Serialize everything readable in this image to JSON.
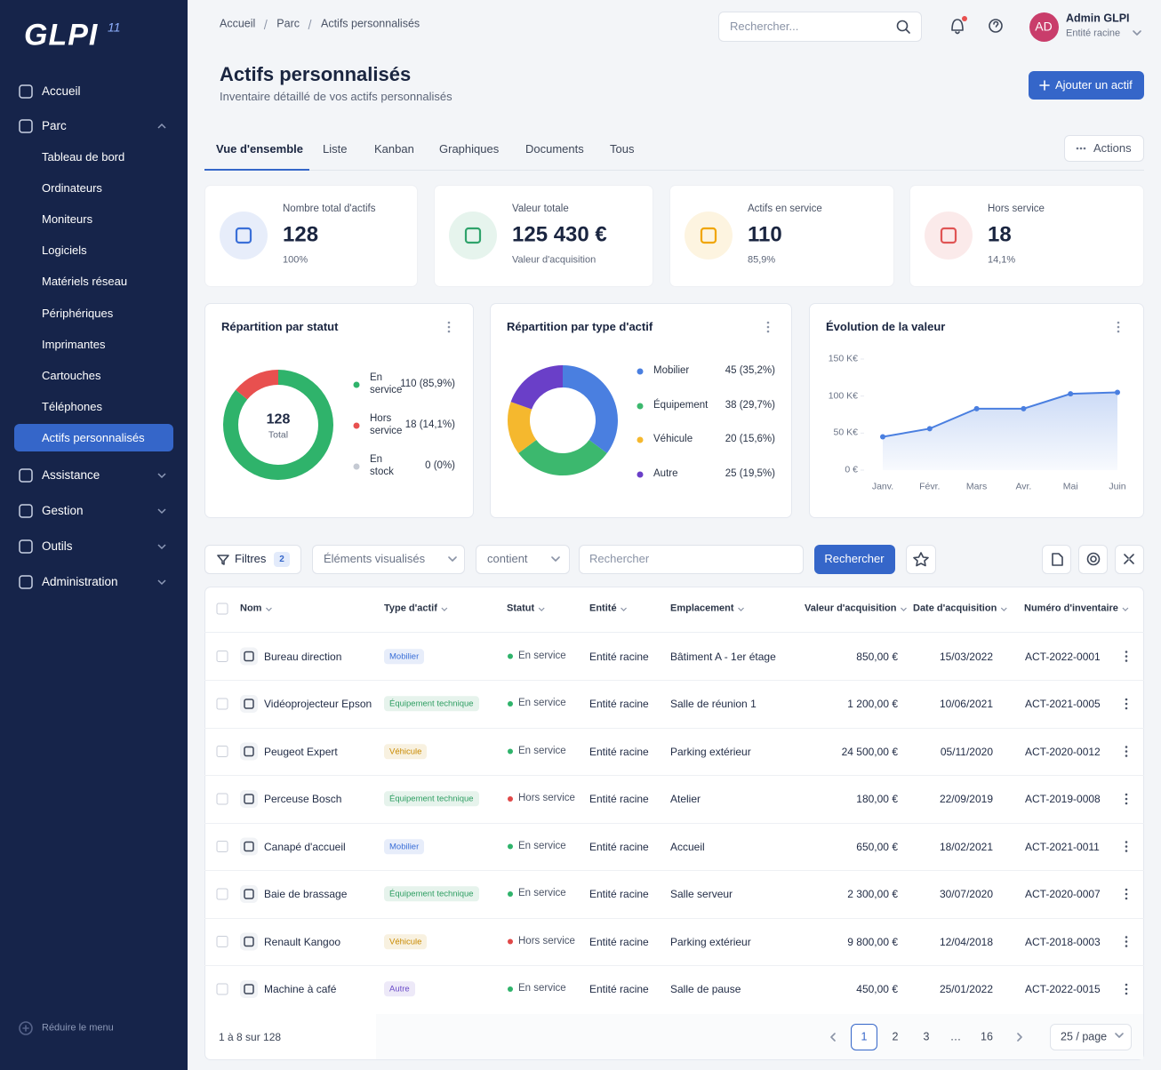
{
  "logo": {
    "text": "GLPI",
    "version": "11"
  },
  "sidebar": {
    "menu": [
      {
        "label": "Accueil"
      },
      {
        "label": "Parc",
        "children": [
          "Tableau de bord",
          "Ordinateurs",
          "Moniteurs",
          "Logiciels",
          "Matériels réseau",
          "Périphériques",
          "Imprimantes",
          "Cartouches",
          "Téléphones",
          "Actifs personnalisés"
        ]
      },
      {
        "label": "Assistance"
      },
      {
        "label": "Gestion"
      },
      {
        "label": "Outils"
      },
      {
        "label": "Administration"
      }
    ],
    "active_child": 9,
    "collapse": "Réduire le menu"
  },
  "topbar": {
    "breadcrumb": [
      "Accueil",
      "Parc",
      "Actifs personnalisés"
    ],
    "search_placeholder": "Rechercher...",
    "user_initials": "AD",
    "user_name": "Admin GLPI",
    "user_entity": "Entité racine"
  },
  "header": {
    "title": "Actifs personnalisés",
    "subtitle": "Inventaire détaillé de vos actifs personnalisés",
    "add_button": "Ajouter un actif"
  },
  "tabs": {
    "items": [
      "Vue d'ensemble",
      "Liste",
      "Kanban",
      "Graphiques",
      "Documents",
      "Tous"
    ],
    "active": 0,
    "actions": "Actions"
  },
  "stats": [
    {
      "label": "Nombre total d'actifs",
      "value": "128",
      "sub": "100%",
      "color": "#3a6fd8"
    },
    {
      "label": "Valeur totale",
      "value": "125 430 €",
      "sub": "Valeur d'acquisition",
      "color": "#2fa36b"
    },
    {
      "label": "Actifs en service",
      "value": "110",
      "sub": "85,9%",
      "color": "#f0a500"
    },
    {
      "label": "Hors service",
      "value": "18",
      "sub": "14,1%",
      "color": "#e05555"
    }
  ],
  "charts": [
    {
      "type": "donut",
      "title": "Répartition par statut",
      "center_value": "128",
      "center_label": "Total",
      "categories": [
        "En service",
        "Hors service",
        "En stock"
      ],
      "values": [
        110,
        18,
        0
      ],
      "value_labels": [
        "110 (85,9%)",
        "18 (14,1%)",
        "0 (0%)"
      ],
      "colors": [
        "#2fb36b",
        "#e8504f",
        "#c5cad3"
      ]
    },
    {
      "type": "donut",
      "title": "Répartition par type d'actif",
      "categories": [
        "Mobilier",
        "Équipement",
        "Véhicule",
        "Autre"
      ],
      "values": [
        45,
        38,
        20,
        25
      ],
      "value_labels": [
        "45 (35,2%)",
        "38 (29,7%)",
        "20 (15,6%)",
        "25 (19,5%)"
      ],
      "colors": [
        "#4a7fe0",
        "#3cb86e",
        "#f5b82e",
        "#6a3fc8"
      ]
    },
    {
      "type": "line",
      "title": "Évolution de la valeur",
      "categories": [
        "Janv.",
        "Févr.",
        "Mars",
        "Avr.",
        "Mai",
        "Juin"
      ],
      "values": [
        45,
        56,
        83,
        83,
        103,
        105
      ],
      "color": "#4a7fe0",
      "ylim": [
        0,
        150
      ],
      "yticks": [
        {
          "value": 0,
          "label": "0 €"
        },
        {
          "value": 50,
          "label": "50 K€"
        },
        {
          "value": 100,
          "label": "100 K€"
        },
        {
          "value": 150,
          "label": "150 K€"
        }
      ]
    }
  ],
  "filters": {
    "button": "Filtres",
    "count": "2",
    "field": "Éléments visualisés",
    "operator": "contient",
    "search_placeholder": "Rechercher",
    "search_button": "Rechercher"
  },
  "table": {
    "columns": [
      "Nom",
      "Type d'actif",
      "Statut",
      "Entité",
      "Emplacement",
      "Valeur d'acquisition",
      "Date d'acquisition",
      "Numéro d'inventaire"
    ],
    "rows": [
      {
        "cells": [
          "Bureau direction",
          "Mobilier",
          "En service",
          "Entité racine",
          "Bâtiment A - 1er étage",
          "850,00 €",
          "15/03/2022",
          "ACT-2022-0001"
        ],
        "type_color": "#3a6fd8",
        "status_color": "#2fb36b"
      },
      {
        "cells": [
          "Vidéoprojecteur Epson",
          "Équipement technique",
          "En service",
          "Entité racine",
          "Salle de réunion 1",
          "1 200,00 €",
          "10/06/2021",
          "ACT-2021-0005"
        ],
        "type_color": "#2e9e62",
        "status_color": "#2fb36b"
      },
      {
        "cells": [
          "Peugeot Expert",
          "Véhicule",
          "En service",
          "Entité racine",
          "Parking extérieur",
          "24 500,00 €",
          "05/11/2020",
          "ACT-2020-0012"
        ],
        "type_color": "#c98a00",
        "status_color": "#2fb36b"
      },
      {
        "cells": [
          "Perceuse Bosch",
          "Équipement technique",
          "Hors service",
          "Entité racine",
          "Atelier",
          "180,00 €",
          "22/09/2019",
          "ACT-2019-0008"
        ],
        "type_color": "#2e9e62",
        "status_color": "#e04848"
      },
      {
        "cells": [
          "Canapé d'accueil",
          "Mobilier",
          "En service",
          "Entité racine",
          "Accueil",
          "650,00 €",
          "18/02/2021",
          "ACT-2021-0011"
        ],
        "type_color": "#3a6fd8",
        "status_color": "#2fb36b"
      },
      {
        "cells": [
          "Baie de brassage",
          "Équipement technique",
          "En service",
          "Entité racine",
          "Salle serveur",
          "2 300,00 €",
          "30/07/2020",
          "ACT-2020-0007"
        ],
        "type_color": "#2e9e62",
        "status_color": "#2fb36b"
      },
      {
        "cells": [
          "Renault Kangoo",
          "Véhicule",
          "Hors service",
          "Entité racine",
          "Parking extérieur",
          "9 800,00 €",
          "12/04/2018",
          "ACT-2018-0003"
        ],
        "type_color": "#c98a00",
        "status_color": "#e04848"
      },
      {
        "cells": [
          "Machine à café",
          "Autre",
          "En service",
          "Entité racine",
          "Salle de pause",
          "450,00 €",
          "25/01/2022",
          "ACT-2022-0015"
        ],
        "type_color": "#6b4bc8",
        "status_color": "#2fb36b"
      }
    ]
  },
  "pagination": {
    "summary": "1 à 8 sur 128",
    "pages": [
      "1",
      "2",
      "3",
      "…",
      "16"
    ],
    "active": 0,
    "per_page": "25 / page"
  }
}
